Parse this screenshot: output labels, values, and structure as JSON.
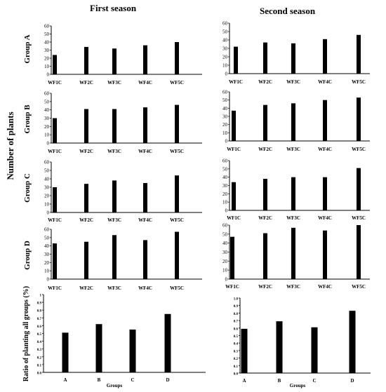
{
  "headers": {
    "first_season": "First season",
    "second_season": "Second season",
    "y_axis_main": "Number of plants"
  },
  "chart_data": [
    {
      "type": "bar",
      "panel": "A-first",
      "ylabel": "Group  A",
      "categories": [
        "WF1C",
        "WF2C",
        "WF3C",
        "WF4C",
        "WF5C"
      ],
      "values": [
        24,
        34,
        32,
        36,
        40
      ],
      "ylim": [
        0,
        60
      ],
      "yticks": [
        "0",
        "10",
        "20",
        "30",
        "40",
        "50",
        "60"
      ]
    },
    {
      "type": "bar",
      "panel": "A-second",
      "ylabel": "",
      "categories": [
        "WF1C",
        "WF2C",
        "WF3C",
        "WF4C",
        "WF5C"
      ],
      "values": [
        32,
        37,
        36,
        41,
        46
      ],
      "ylim": [
        0,
        60
      ],
      "yticks": [
        "0",
        "10",
        "20",
        "30",
        "40",
        "50",
        "60"
      ]
    },
    {
      "type": "bar",
      "panel": "B-first",
      "ylabel": "Group  B",
      "categories": [
        "WF1C",
        "WF2C",
        "WF3C",
        "WF4C",
        "WF5C"
      ],
      "values": [
        30,
        41,
        41,
        43,
        46
      ],
      "ylim": [
        0,
        60
      ],
      "yticks": [
        "0",
        "10",
        "20",
        "30",
        "40",
        "50",
        "60"
      ]
    },
    {
      "type": "bar",
      "panel": "B-second",
      "ylabel": "",
      "categories": [
        "WF1C",
        "WF2C",
        "WF3C",
        "WF4C",
        "WF5C"
      ],
      "values": [
        37,
        44,
        46,
        50,
        53
      ],
      "ylim": [
        0,
        60
      ],
      "yticks": [
        "0",
        "10",
        "20",
        "30",
        "40",
        "50",
        "60"
      ]
    },
    {
      "type": "bar",
      "panel": "C-first",
      "ylabel": "Group  C",
      "categories": [
        "WF1C",
        "WF2C",
        "WF3C",
        "WF4C",
        "WF5C"
      ],
      "values": [
        30,
        34,
        38,
        35,
        44
      ],
      "ylim": [
        0,
        60
      ],
      "yticks": [
        "0",
        "10",
        "20",
        "30",
        "40",
        "50",
        "60"
      ]
    },
    {
      "type": "bar",
      "panel": "C-second",
      "ylabel": "",
      "categories": [
        "WF1C",
        "WF2C",
        "WF3C",
        "WF4C",
        "WF5C"
      ],
      "values": [
        34,
        38,
        40,
        40,
        51
      ],
      "ylim": [
        0,
        60
      ],
      "yticks": [
        "0",
        "10",
        "20",
        "30",
        "40",
        "50",
        "60"
      ]
    },
    {
      "type": "bar",
      "panel": "D-first",
      "ylabel": "Group  D",
      "categories": [
        "WF1C",
        "WF2C",
        "WF3C",
        "WF4C",
        "WF5C"
      ],
      "values": [
        43,
        45,
        53,
        47,
        57
      ],
      "ylim": [
        0,
        60
      ],
      "yticks": [
        "0",
        "10",
        "20",
        "30",
        "40",
        "50",
        "60"
      ]
    },
    {
      "type": "bar",
      "panel": "D-second",
      "ylabel": "",
      "categories": [
        "WF1C",
        "WF2C",
        "WF3C",
        "WF4C",
        "WF5C"
      ],
      "values": [
        47,
        51,
        57,
        54,
        60
      ],
      "ylim": [
        0,
        60
      ],
      "yticks": [
        "0",
        "10",
        "20",
        "30",
        "40",
        "50",
        "60"
      ]
    },
    {
      "type": "bar",
      "panel": "ratio-first",
      "ylabel": "Ratio of planting all groups (%)",
      "xlabel": "Groups",
      "categories": [
        "A",
        "B",
        "C",
        "D"
      ],
      "values": [
        0.51,
        0.62,
        0.55,
        0.75
      ],
      "ylim": [
        0,
        1
      ],
      "yticks": [
        "0.0",
        "0.1",
        "0.2",
        "0.3",
        "0.4",
        "0.5",
        "0.6",
        "0.7",
        "0.8",
        "0.9",
        "1"
      ]
    },
    {
      "type": "bar",
      "panel": "ratio-second",
      "ylabel": "",
      "xlabel": "Groups",
      "categories": [
        "A",
        "B",
        "C",
        "D"
      ],
      "values": [
        0.59,
        0.69,
        0.61,
        0.83
      ],
      "ylim": [
        0,
        1
      ],
      "yticks": [
        "0.0",
        "0.1",
        "0.2",
        "0.3",
        "0.4",
        "0.5",
        "0.6",
        "0.7",
        "0.8",
        "0.9",
        "1.0"
      ]
    }
  ]
}
